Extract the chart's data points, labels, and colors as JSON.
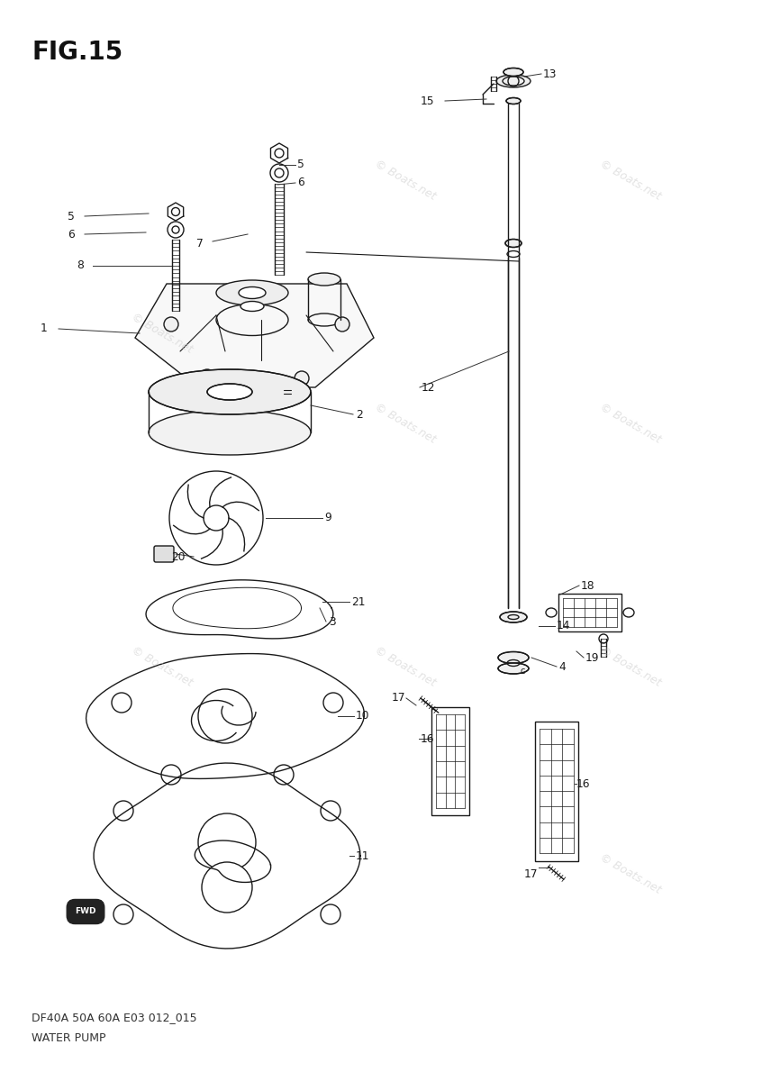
{
  "title": "FIG.15",
  "subtitle1": "DF40A 50A 60A E03 012_015",
  "subtitle2": "WATER PUMP",
  "bg_color": "#ffffff",
  "watermark_text": "© Boats.net",
  "watermark_color": "#cccccc",
  "line_color": "#1a1a1a",
  "label_color": "#1a1a1a",
  "fig_width": 8.46,
  "fig_height": 12.0,
  "dpi": 100
}
